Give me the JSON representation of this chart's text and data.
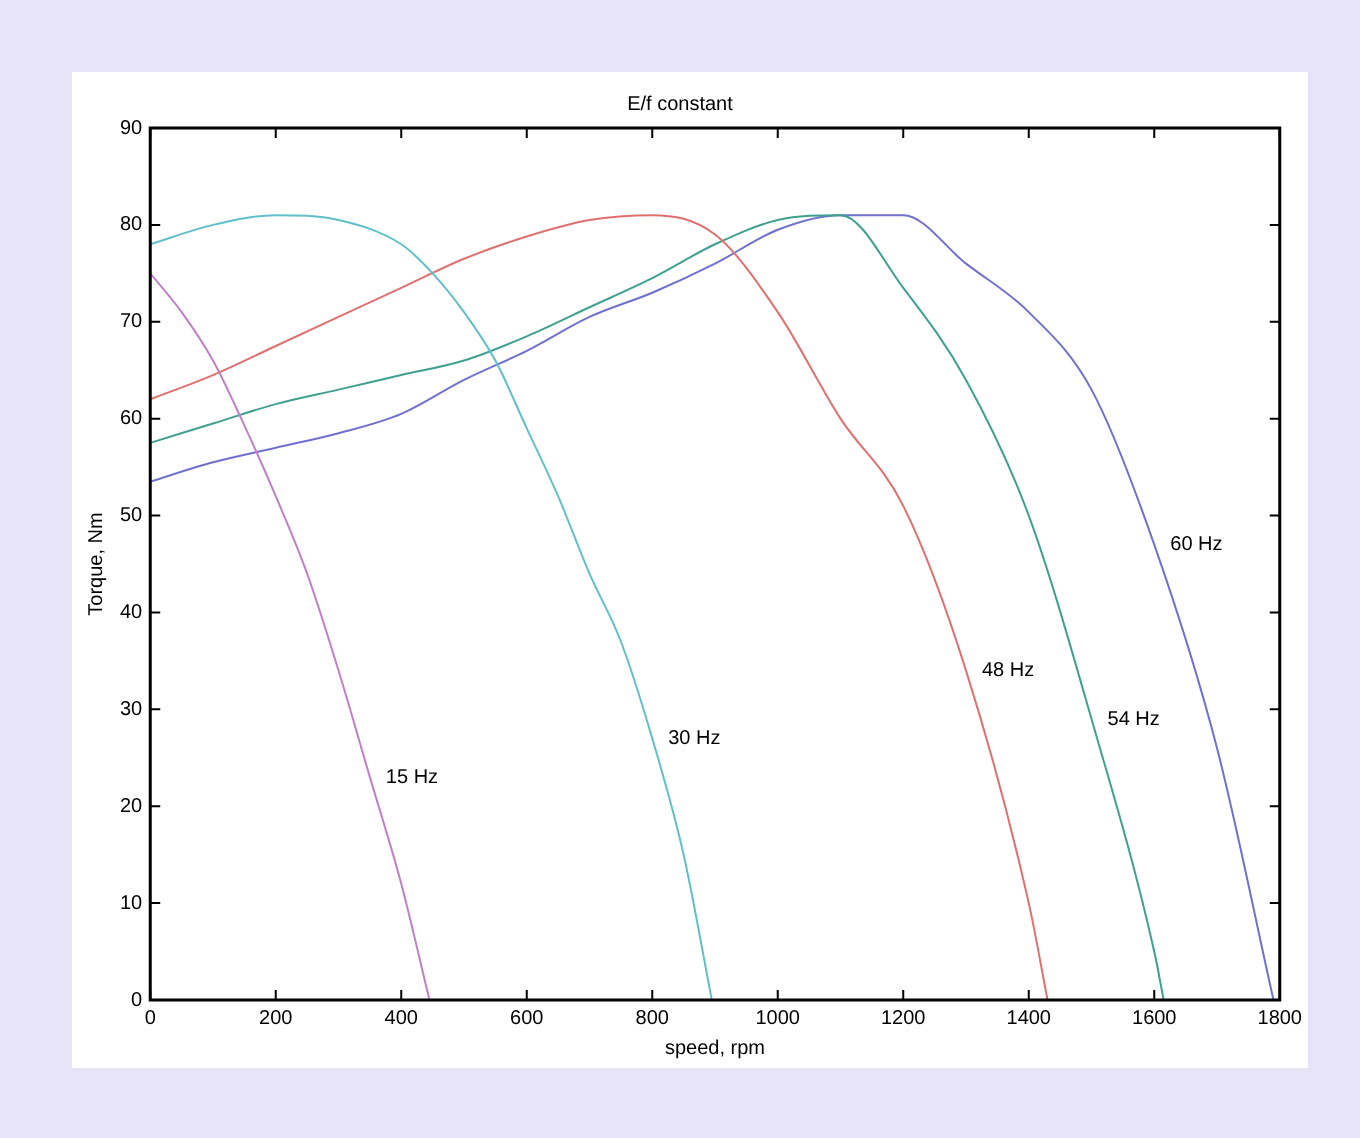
{
  "chart_data": {
    "type": "line",
    "title": "E/f constant",
    "xlabel": "speed, rpm",
    "ylabel": "Torque, Nm",
    "xlim": [
      0,
      1800
    ],
    "xticks": [
      0,
      200,
      400,
      600,
      800,
      1000,
      1200,
      1400,
      1600,
      1800
    ],
    "ylim": [
      0,
      90
    ],
    "yticks": [
      0,
      10,
      20,
      30,
      40,
      50,
      60,
      70,
      80,
      90
    ],
    "grid": false,
    "legend": false,
    "marker": "none",
    "line_style": "solid",
    "series": [
      {
        "name": "15 Hz",
        "color": "#c080c8",
        "x": [
          0,
          50,
          100,
          145,
          200,
          250,
          300,
          350,
          400,
          445
        ],
        "values": [
          75,
          71,
          66,
          60,
          52,
          44,
          34,
          23,
          12,
          0
        ]
      },
      {
        "name": "30 Hz",
        "color": "#60c0c8",
        "x": [
          0,
          100,
          200,
          300,
          400,
          450,
          500,
          550,
          600,
          650,
          700,
          750,
          800,
          850,
          895
        ],
        "values": [
          78,
          80,
          81,
          80.5,
          78,
          75,
          71,
          66,
          59,
          52,
          44,
          37,
          27,
          15,
          0
        ]
      },
      {
        "name": "48 Hz",
        "color": "#e07070",
        "x": [
          0,
          100,
          200,
          300,
          400,
          500,
          600,
          700,
          800,
          900,
          1000,
          1100,
          1200,
          1300,
          1400,
          1430
        ],
        "values": [
          62,
          64.5,
          67.5,
          70.5,
          73.5,
          76.5,
          78.8,
          80.5,
          81,
          79,
          71,
          60,
          51,
          34,
          10,
          0
        ]
      },
      {
        "name": "54 Hz",
        "color": "#40a090",
        "x": [
          0,
          100,
          200,
          300,
          400,
          500,
          600,
          700,
          800,
          900,
          1000,
          1100,
          1200,
          1300,
          1400,
          1500,
          1600,
          1615
        ],
        "values": [
          57.5,
          59.5,
          61.5,
          63,
          64.5,
          66,
          68.5,
          71.5,
          74.5,
          78,
          80.5,
          81,
          73.5,
          64,
          50,
          29,
          5,
          0
        ]
      },
      {
        "name": "60 Hz",
        "color": "#7070d0",
        "x": [
          0,
          100,
          200,
          300,
          400,
          500,
          600,
          700,
          800,
          900,
          1000,
          1100,
          1200,
          1300,
          1400,
          1500,
          1600,
          1700,
          1790
        ],
        "values": [
          53.5,
          55.5,
          57,
          58.5,
          60.5,
          64,
          67,
          70.5,
          73,
          76,
          79.5,
          81,
          81,
          76,
          71,
          63,
          47,
          26,
          0
        ]
      }
    ]
  }
}
